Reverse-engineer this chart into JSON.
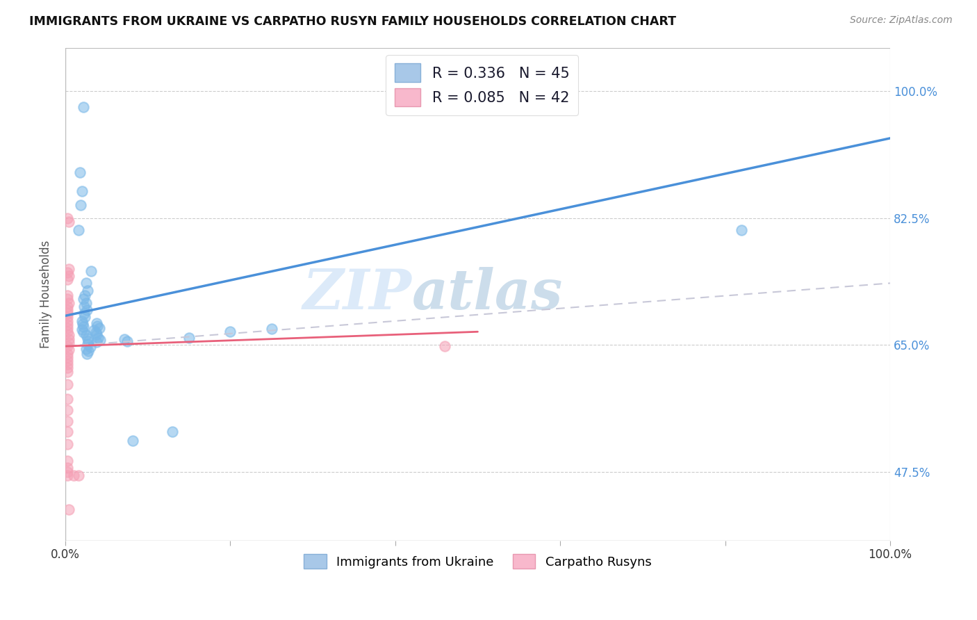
{
  "title": "IMMIGRANTS FROM UKRAINE VS CARPATHO RUSYN FAMILY HOUSEHOLDS CORRELATION CHART",
  "source": "Source: ZipAtlas.com",
  "ylabel": "Family Households",
  "xlim": [
    0,
    1.0
  ],
  "ylim": [
    0.38,
    1.06
  ],
  "yticks": [
    0.475,
    0.65,
    0.825,
    1.0
  ],
  "ytick_labels": [
    "47.5%",
    "65.0%",
    "82.5%",
    "100.0%"
  ],
  "legend_label1": "Immigrants from Ukraine",
  "legend_label2": "Carpatho Rusyns",
  "blue_color": "#7ab8e8",
  "pink_color": "#f5a0b5",
  "blue_scatter": [
    [
      0.022,
      0.978
    ],
    [
      0.018,
      0.888
    ],
    [
      0.02,
      0.862
    ],
    [
      0.019,
      0.843
    ],
    [
      0.016,
      0.808
    ],
    [
      0.031,
      0.752
    ],
    [
      0.025,
      0.735
    ],
    [
      0.027,
      0.725
    ],
    [
      0.024,
      0.718
    ],
    [
      0.022,
      0.713
    ],
    [
      0.025,
      0.708
    ],
    [
      0.023,
      0.703
    ],
    [
      0.026,
      0.698
    ],
    [
      0.023,
      0.693
    ],
    [
      0.024,
      0.688
    ],
    [
      0.02,
      0.683
    ],
    [
      0.021,
      0.679
    ],
    [
      0.022,
      0.675
    ],
    [
      0.02,
      0.671
    ],
    [
      0.022,
      0.667
    ],
    [
      0.025,
      0.663
    ],
    [
      0.027,
      0.659
    ],
    [
      0.028,
      0.655
    ],
    [
      0.027,
      0.651
    ],
    [
      0.03,
      0.647
    ],
    [
      0.025,
      0.644
    ],
    [
      0.028,
      0.641
    ],
    [
      0.026,
      0.638
    ],
    [
      0.038,
      0.68
    ],
    [
      0.039,
      0.676
    ],
    [
      0.041,
      0.673
    ],
    [
      0.035,
      0.67
    ],
    [
      0.037,
      0.667
    ],
    [
      0.038,
      0.664
    ],
    [
      0.04,
      0.66
    ],
    [
      0.042,
      0.657
    ],
    [
      0.038,
      0.654
    ],
    [
      0.072,
      0.658
    ],
    [
      0.075,
      0.655
    ],
    [
      0.15,
      0.66
    ],
    [
      0.2,
      0.668
    ],
    [
      0.25,
      0.672
    ],
    [
      0.82,
      0.808
    ],
    [
      0.082,
      0.518
    ],
    [
      0.13,
      0.53
    ]
  ],
  "pink_scatter": [
    [
      0.003,
      0.825
    ],
    [
      0.004,
      0.82
    ],
    [
      0.004,
      0.755
    ],
    [
      0.003,
      0.75
    ],
    [
      0.004,
      0.745
    ],
    [
      0.003,
      0.74
    ],
    [
      0.003,
      0.718
    ],
    [
      0.003,
      0.713
    ],
    [
      0.004,
      0.708
    ],
    [
      0.003,
      0.703
    ],
    [
      0.003,
      0.698
    ],
    [
      0.003,
      0.693
    ],
    [
      0.003,
      0.688
    ],
    [
      0.003,
      0.683
    ],
    [
      0.003,
      0.678
    ],
    [
      0.003,
      0.673
    ],
    [
      0.003,
      0.668
    ],
    [
      0.004,
      0.663
    ],
    [
      0.004,
      0.658
    ],
    [
      0.004,
      0.653
    ],
    [
      0.003,
      0.648
    ],
    [
      0.004,
      0.643
    ],
    [
      0.003,
      0.638
    ],
    [
      0.003,
      0.633
    ],
    [
      0.003,
      0.628
    ],
    [
      0.003,
      0.623
    ],
    [
      0.003,
      0.618
    ],
    [
      0.003,
      0.613
    ],
    [
      0.003,
      0.595
    ],
    [
      0.003,
      0.575
    ],
    [
      0.003,
      0.56
    ],
    [
      0.003,
      0.545
    ],
    [
      0.003,
      0.53
    ],
    [
      0.003,
      0.513
    ],
    [
      0.003,
      0.49
    ],
    [
      0.003,
      0.48
    ],
    [
      0.003,
      0.475
    ],
    [
      0.003,
      0.47
    ],
    [
      0.01,
      0.47
    ],
    [
      0.016,
      0.47
    ],
    [
      0.46,
      0.648
    ],
    [
      0.004,
      0.423
    ]
  ],
  "blue_line": [
    0.0,
    1.0,
    0.69,
    0.935
  ],
  "pink_line_solid": [
    0.0,
    0.5,
    0.648,
    0.668
  ],
  "pink_line_dashed": [
    0.0,
    1.0,
    0.648,
    0.735
  ],
  "watermark_zip": "ZIP",
  "watermark_atlas": "atlas",
  "background_color": "#ffffff",
  "grid_color": "#cccccc"
}
